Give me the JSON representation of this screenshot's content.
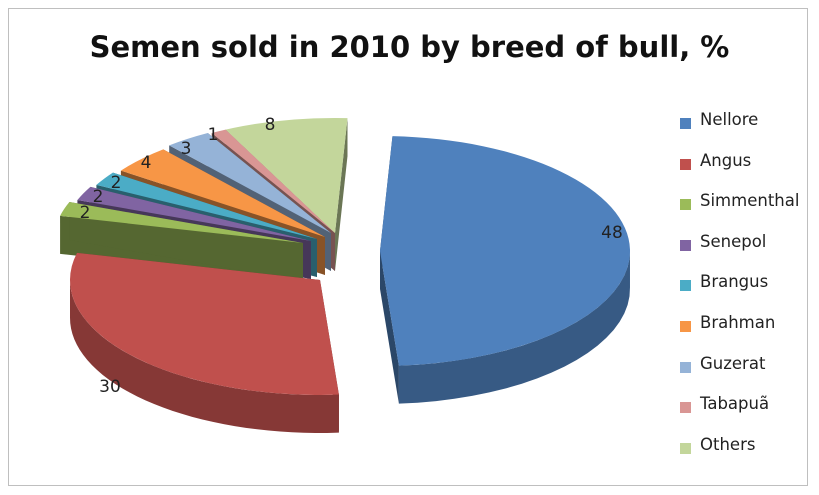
{
  "chart_data": {
    "type": "pie",
    "title": "Semen sold in 2010 by breed of bull, %",
    "legend_position": "right",
    "slices": [
      {
        "label": "Nellore",
        "value": 48,
        "color": "#4f81bd",
        "data_label": "48"
      },
      {
        "label": "Angus",
        "value": 30,
        "color": "#c0504d",
        "data_label": "30"
      },
      {
        "label": "Simmenthal",
        "value": 2,
        "color": "#9bbb59",
        "data_label": "2"
      },
      {
        "label": "Senepol",
        "value": 2,
        "color": "#8064a2",
        "data_label": "2"
      },
      {
        "label": "Brangus",
        "value": 2,
        "color": "#4bacc6",
        "data_label": "2"
      },
      {
        "label": "Brahman",
        "value": 4,
        "color": "#f79646",
        "data_label": "4"
      },
      {
        "label": "Guzerat",
        "value": 3,
        "color": "#95b3d7",
        "data_label": "3"
      },
      {
        "label": "Tabapuã",
        "value": 1,
        "color": "#d99694",
        "data_label": "1"
      },
      {
        "label": "Others",
        "value": 8,
        "color": "#c3d69b",
        "data_label": "8"
      }
    ]
  }
}
